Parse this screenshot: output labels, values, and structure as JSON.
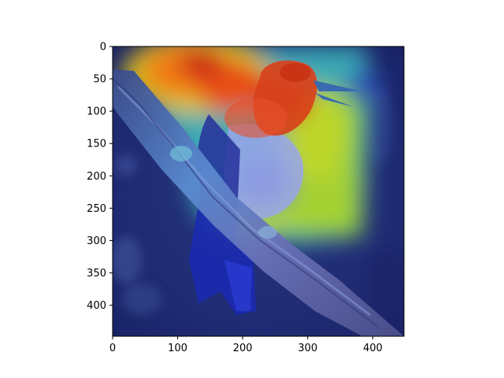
{
  "chart_data": {
    "type": "heatmap",
    "title": "",
    "xlabel": "",
    "ylabel": "",
    "xlim": [
      0,
      448
    ],
    "ylim": [
      448,
      0
    ],
    "x_ticks": [
      0,
      100,
      200,
      300,
      400
    ],
    "y_ticks": [
      0,
      50,
      100,
      150,
      200,
      250,
      300,
      350,
      400
    ],
    "colormap": "jet",
    "grid": false,
    "legend": "none",
    "background_image": "bird-on-branch photo overlaid with attention heatmap",
    "hotspots": [
      {
        "x": 180,
        "y": 80,
        "intensity": 1.0
      },
      {
        "x": 270,
        "y": 90,
        "intensity": 0.95
      },
      {
        "x": 110,
        "y": 80,
        "intensity": 0.85
      },
      {
        "x": 230,
        "y": 30,
        "intensity": 0.65
      },
      {
        "x": 330,
        "y": 200,
        "intensity": 0.65
      },
      {
        "x": 330,
        "y": 270,
        "intensity": 0.6
      },
      {
        "x": 160,
        "y": 170,
        "intensity": 0.5
      }
    ]
  }
}
